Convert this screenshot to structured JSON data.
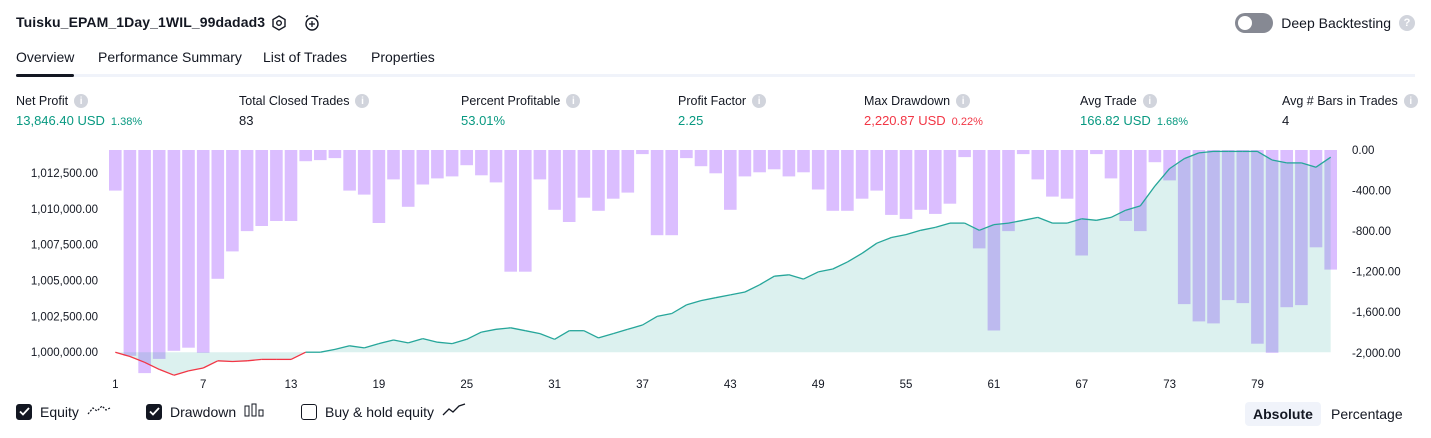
{
  "header": {
    "title": "Tuisku_EPAM_1Day_1WIL_99dadad3",
    "icons": [
      "settings-icon",
      "alarm-add-icon"
    ],
    "deep_backtesting_label": "Deep Backtesting",
    "deep_backtesting_enabled": false
  },
  "tabs": [
    {
      "label": "Overview",
      "active": true
    },
    {
      "label": "Performance Summary",
      "active": false
    },
    {
      "label": "List of Trades",
      "active": false
    },
    {
      "label": "Properties",
      "active": false
    }
  ],
  "metrics": [
    {
      "label": "Net Profit",
      "value": "13,846.40 USD",
      "pct": "1.38%",
      "color": "#089981"
    },
    {
      "label": "Total Closed Trades",
      "value": "83",
      "pct": "",
      "color": "#131722"
    },
    {
      "label": "Percent Profitable",
      "value": "53.01%",
      "pct": "",
      "color": "#089981"
    },
    {
      "label": "Profit Factor",
      "value": "2.25",
      "pct": "",
      "color": "#089981"
    },
    {
      "label": "Max Drawdown",
      "value": "2,220.87 USD",
      "pct": "0.22%",
      "color": "#f23645"
    },
    {
      "label": "Avg Trade",
      "value": "166.82 USD",
      "pct": "1.68%",
      "color": "#089981"
    },
    {
      "label": "Avg # Bars in Trades",
      "value": "4",
      "pct": "",
      "color": "#131722"
    }
  ],
  "chart_data": {
    "type": "area",
    "x": [
      1,
      2,
      3,
      4,
      5,
      6,
      7,
      8,
      9,
      10,
      11,
      12,
      13,
      14,
      15,
      16,
      17,
      18,
      19,
      20,
      21,
      22,
      23,
      24,
      25,
      26,
      27,
      28,
      29,
      30,
      31,
      32,
      33,
      34,
      35,
      36,
      37,
      38,
      39,
      40,
      41,
      42,
      43,
      44,
      45,
      46,
      47,
      48,
      49,
      50,
      51,
      52,
      53,
      54,
      55,
      56,
      57,
      58,
      59,
      60,
      61,
      62,
      63,
      64,
      65,
      66,
      67,
      68,
      69,
      70,
      71,
      72,
      73,
      74,
      75,
      76,
      77,
      78,
      79,
      80,
      81,
      82,
      83,
      84
    ],
    "x_ticks": [
      "1",
      "7",
      "13",
      "19",
      "25",
      "31",
      "37",
      "43",
      "49",
      "55",
      "61",
      "67",
      "73",
      "79"
    ],
    "left_axis": {
      "ticks": [
        "1,000,000.00",
        "1,002,500.00",
        "1,005,000.00",
        "1,007,500.00",
        "1,010,000.00",
        "1,012,500.00"
      ],
      "range": [
        998900,
        1014100
      ]
    },
    "right_axis": {
      "ticks": [
        "0.00",
        "-400.00",
        "-800.00",
        "-1,200.00",
        "-1,600.00",
        "-2,000.00"
      ],
      "range": [
        -2150,
        0
      ]
    },
    "series": [
      {
        "name": "Equity",
        "axis": "left",
        "color_positive": "#26a69a",
        "color_negative": "#f23645",
        "values": [
          1000000,
          999700,
          999300,
          998800,
          998400,
          998700,
          998900,
          999400,
          999350,
          999400,
          999500,
          999500,
          999500,
          1000000,
          1000000,
          1000200,
          1000450,
          1000300,
          1000600,
          1000850,
          1000650,
          1000950,
          1000700,
          1000600,
          1000900,
          1001400,
          1001600,
          1001700,
          1001500,
          1001300,
          1000900,
          1001500,
          1001500,
          1001000,
          1001300,
          1001600,
          1001900,
          1002500,
          1002700,
          1003300,
          1003600,
          1003800,
          1004000,
          1004200,
          1004700,
          1005300,
          1005400,
          1005100,
          1005600,
          1005800,
          1006300,
          1006900,
          1007600,
          1008000,
          1008200,
          1008500,
          1008700,
          1009000,
          1009000,
          1008500,
          1008900,
          1009000,
          1009200,
          1009400,
          1009000,
          1009000,
          1009300,
          1009200,
          1009400,
          1009900,
          1010200,
          1011600,
          1012800,
          1013500,
          1013900,
          1014000,
          1014000,
          1014000,
          1014000,
          1013400,
          1013200,
          1013200,
          1012900,
          1013600
        ]
      },
      {
        "name": "Drawdown",
        "axis": "right",
        "color": "#d5b3ff",
        "values": [
          -400,
          -2030,
          -2200,
          -2060,
          -1980,
          -1950,
          -2000,
          -1270,
          -1000,
          -800,
          -750,
          -700,
          -700,
          -110,
          -100,
          -80,
          -400,
          -440,
          -720,
          -290,
          -560,
          -340,
          -280,
          -260,
          -150,
          -250,
          -320,
          -1200,
          -1200,
          -290,
          -590,
          -710,
          -470,
          -600,
          -480,
          -420,
          -40,
          -840,
          -840,
          -80,
          -160,
          -230,
          -590,
          -260,
          -220,
          -190,
          -260,
          -220,
          -390,
          -600,
          -600,
          -480,
          -400,
          -640,
          -680,
          -590,
          -630,
          -530,
          -70,
          -970,
          -1780,
          -800,
          -40,
          -290,
          -460,
          -480,
          -1040,
          -40,
          -280,
          -700,
          -800,
          -120,
          -300,
          -1520,
          -1690,
          -1710,
          -1480,
          -1510,
          -1910,
          -2000,
          -1550,
          -1530,
          -960,
          -1180
        ]
      }
    ]
  },
  "legend": [
    {
      "label": "Equity",
      "checked": true,
      "icon": "equity-line-icon"
    },
    {
      "label": "Drawdown",
      "checked": true,
      "icon": "drawdown-bars-icon"
    },
    {
      "label": "Buy & hold equity",
      "checked": false,
      "icon": "buy-hold-line-icon"
    }
  ],
  "mode": {
    "absolute_label": "Absolute",
    "percentage_label": "Percentage",
    "selected": "Absolute"
  }
}
